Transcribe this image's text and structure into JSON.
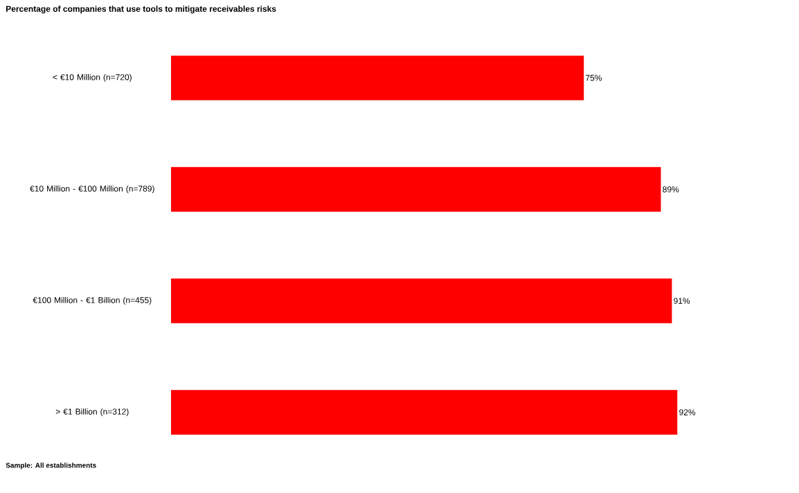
{
  "chart_data": {
    "type": "bar",
    "orientation": "horizontal",
    "title": "Percentage of companies that use tools to mitigate receivables risks",
    "categories": [
      "< €10 Million (n=720)",
      "€10 Million - €100 Million (n=789)",
      "€100 Million - €1 Billion (n=455)",
      "> €1 Billion (n=312)"
    ],
    "values": [
      75,
      89,
      91,
      92
    ],
    "value_labels": [
      "75%",
      "89%",
      "91%",
      "92%"
    ],
    "color": "#ff0000",
    "annotations": [
      "Sample: All establishments"
    ]
  }
}
